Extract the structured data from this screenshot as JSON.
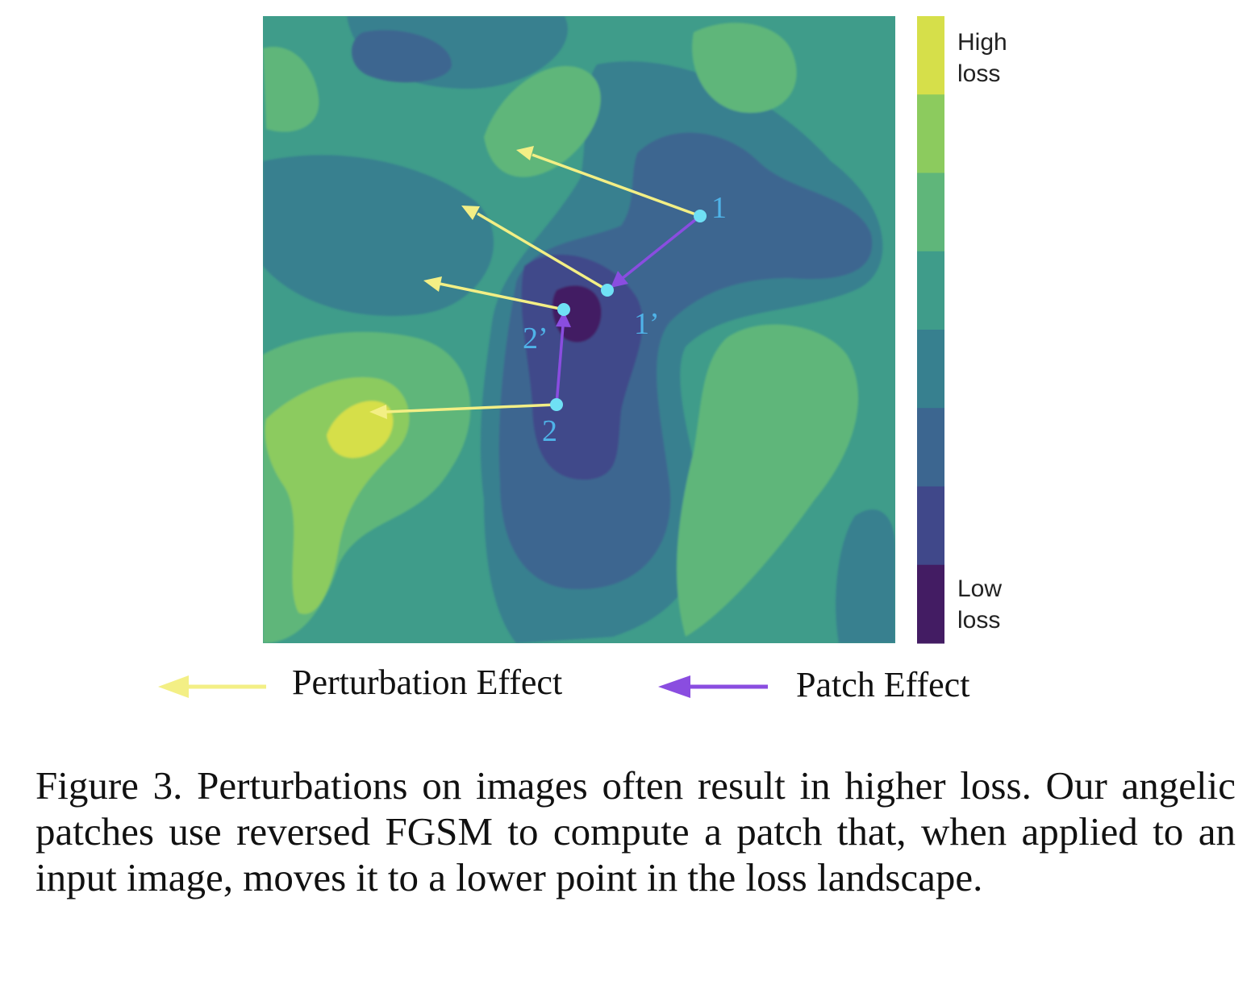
{
  "colorbar": {
    "top_label": [
      "High",
      "loss"
    ],
    "bottom_label": [
      "Low",
      "loss"
    ],
    "colors": [
      "#d6df4a",
      "#8ccb5e",
      "#5fb67a",
      "#3f9c8a",
      "#37808f",
      "#3c6690",
      "#40488a",
      "#431c63"
    ]
  },
  "points": [
    {
      "id": "p1",
      "label": "1"
    },
    {
      "id": "p1p",
      "label": "1’"
    },
    {
      "id": "p2p",
      "label": "2’"
    },
    {
      "id": "p2",
      "label": "2"
    }
  ],
  "arrow_colors": {
    "perturbation": "#f3ef85",
    "patch": "#8a4de0"
  },
  "legend": {
    "perturbation_label": "Perturbation Effect",
    "patch_label": "Patch Effect"
  },
  "caption": "Figure 3. Perturbations on images often result in higher loss. Our angelic patches use reversed FGSM to compute a patch that, when applied to an input image, moves it to a lower point in the loss landscape."
}
